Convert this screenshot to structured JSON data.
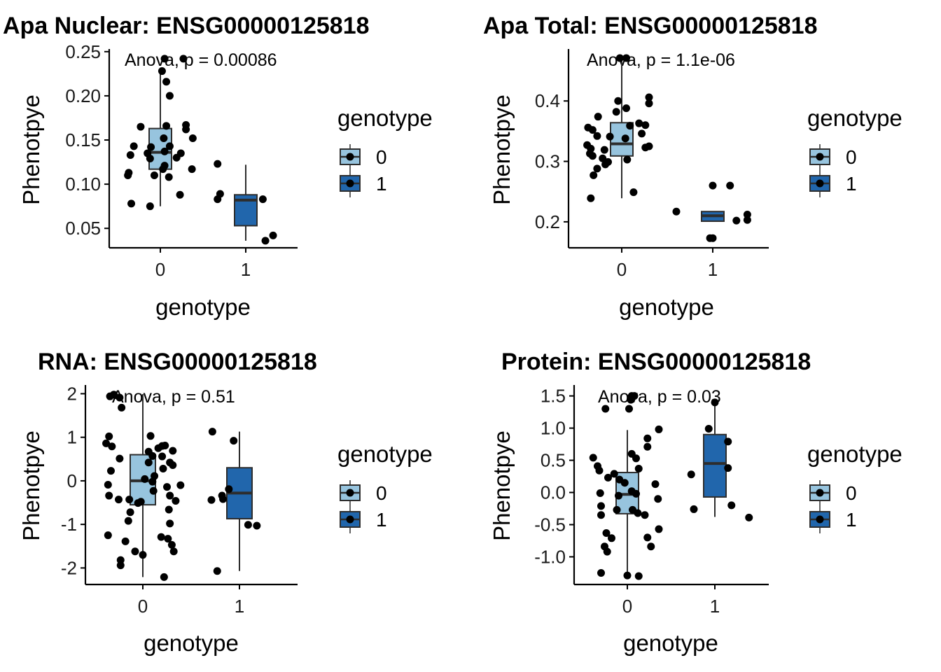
{
  "chart_data": [
    {
      "type": "boxplot",
      "title": "Apa Nuclear: ENSG00000125818",
      "xlabel": "genotype",
      "ylabel": "Phenotpye",
      "annotation": "Anova, p = 0.00086",
      "categories": [
        "0",
        "1"
      ],
      "ylim": [
        0.028,
        0.253
      ],
      "yticks": [
        0.05,
        0.1,
        0.15,
        0.2,
        0.25
      ],
      "ytick_labels": [
        "0.05",
        "0.10",
        "0.15",
        "0.20",
        "0.25"
      ],
      "legend": {
        "title": "genotype",
        "entries": [
          "0",
          "1"
        ],
        "position": "right"
      },
      "boxes": [
        {
          "group": "0",
          "whisker_low": 0.075,
          "q1": 0.117,
          "median": 0.136,
          "q3": 0.163,
          "whisker_high": 0.228
        },
        {
          "group": "1",
          "whisker_low": 0.036,
          "q1": 0.053,
          "median": 0.082,
          "q3": 0.088,
          "whisker_high": 0.122
        }
      ],
      "points": [
        {
          "x": 0.05,
          "y": 0.242
        },
        {
          "x": 0.27,
          "y": 0.242
        },
        {
          "x": 0.02,
          "y": 0.228
        },
        {
          "x": 0.07,
          "y": 0.216
        },
        {
          "x": 0.11,
          "y": 0.2
        },
        {
          "x": 0.3,
          "y": 0.167
        },
        {
          "x": 0.3,
          "y": 0.162
        },
        {
          "x": 0.07,
          "y": 0.166
        },
        {
          "x": -0.23,
          "y": 0.165
        },
        {
          "x": 0.38,
          "y": 0.152
        },
        {
          "x": 0.04,
          "y": 0.152
        },
        {
          "x": -0.31,
          "y": 0.143
        },
        {
          "x": -0.11,
          "y": 0.142
        },
        {
          "x": 0.11,
          "y": 0.143
        },
        {
          "x": 0.05,
          "y": 0.137
        },
        {
          "x": -0.15,
          "y": 0.135
        },
        {
          "x": 0.24,
          "y": 0.135
        },
        {
          "x": -0.12,
          "y": 0.129
        },
        {
          "x": -0.35,
          "y": 0.133
        },
        {
          "x": 0.19,
          "y": 0.13
        },
        {
          "x": 0.05,
          "y": 0.121
        },
        {
          "x": 0.03,
          "y": 0.117
        },
        {
          "x": 0.37,
          "y": 0.117
        },
        {
          "x": -0.37,
          "y": 0.113
        },
        {
          "x": -0.38,
          "y": 0.11
        },
        {
          "x": -0.07,
          "y": 0.11
        },
        {
          "x": 0.1,
          "y": 0.108
        },
        {
          "x": 0.23,
          "y": 0.088
        },
        {
          "x": -0.34,
          "y": 0.078
        },
        {
          "x": -0.12,
          "y": 0.075
        },
        {
          "x": 0.67,
          "y": 0.123
        },
        {
          "x": 0.7,
          "y": 0.089
        },
        {
          "x": 0.67,
          "y": 0.083
        },
        {
          "x": 1.2,
          "y": 0.083
        },
        {
          "x": 1.32,
          "y": 0.042
        },
        {
          "x": 1.23,
          "y": 0.036
        }
      ]
    },
    {
      "type": "boxplot",
      "title": "Apa Total: ENSG00000125818",
      "xlabel": "genotype",
      "ylabel": "Phenotpye",
      "annotation": "Anova, p = 1.1e-06",
      "categories": [
        "0",
        "1"
      ],
      "ylim": [
        0.157,
        0.486
      ],
      "yticks": [
        0.2,
        0.3,
        0.4
      ],
      "ytick_labels": [
        "0.2",
        "0.3",
        "0.4"
      ],
      "legend": {
        "title": "genotype",
        "entries": [
          "0",
          "1"
        ],
        "position": "right"
      },
      "boxes": [
        {
          "group": "0",
          "whisker_low": 0.239,
          "q1": 0.309,
          "median": 0.329,
          "q3": 0.364,
          "whisker_high": 0.471
        },
        {
          "group": "1",
          "whisker_low": 0.2,
          "q1": 0.201,
          "median": 0.21,
          "q3": 0.217,
          "whisker_high": 0.217
        }
      ],
      "points": [
        {
          "x": -0.02,
          "y": 0.471
        },
        {
          "x": 0.05,
          "y": 0.471
        },
        {
          "x": 0.3,
          "y": 0.406
        },
        {
          "x": -0.04,
          "y": 0.4
        },
        {
          "x": 0.3,
          "y": 0.396
        },
        {
          "x": 0.05,
          "y": 0.388
        },
        {
          "x": -0.06,
          "y": 0.382
        },
        {
          "x": -0.26,
          "y": 0.374
        },
        {
          "x": 0.19,
          "y": 0.363
        },
        {
          "x": 0.26,
          "y": 0.36
        },
        {
          "x": 0.09,
          "y": 0.359
        },
        {
          "x": -0.37,
          "y": 0.356
        },
        {
          "x": -0.32,
          "y": 0.352
        },
        {
          "x": 0.22,
          "y": 0.346
        },
        {
          "x": -0.27,
          "y": 0.342
        },
        {
          "x": -0.13,
          "y": 0.341
        },
        {
          "x": 0.04,
          "y": 0.338
        },
        {
          "x": -0.38,
          "y": 0.327
        },
        {
          "x": 0.26,
          "y": 0.323
        },
        {
          "x": 0.3,
          "y": 0.325
        },
        {
          "x": -0.34,
          "y": 0.321
        },
        {
          "x": -0.19,
          "y": 0.319
        },
        {
          "x": -0.35,
          "y": 0.313
        },
        {
          "x": -0.32,
          "y": 0.309
        },
        {
          "x": -0.21,
          "y": 0.305
        },
        {
          "x": 0.06,
          "y": 0.303
        },
        {
          "x": -0.15,
          "y": 0.299
        },
        {
          "x": -0.18,
          "y": 0.295
        },
        {
          "x": -0.27,
          "y": 0.288
        },
        {
          "x": -0.31,
          "y": 0.277
        },
        {
          "x": 0.13,
          "y": 0.249
        },
        {
          "x": -0.34,
          "y": 0.239
        },
        {
          "x": 1.0,
          "y": 0.26
        },
        {
          "x": 1.19,
          "y": 0.26
        },
        {
          "x": 0.6,
          "y": 0.217
        },
        {
          "x": 1.38,
          "y": 0.212
        },
        {
          "x": 1.26,
          "y": 0.202
        },
        {
          "x": 1.38,
          "y": 0.203
        },
        {
          "x": 0.97,
          "y": 0.173
        },
        {
          "x": 1.0,
          "y": 0.173
        }
      ]
    },
    {
      "type": "boxplot",
      "title": "RNA: ENSG00000125818",
      "xlabel": "genotype",
      "ylabel": "Phenotpye",
      "annotation": "Anova, p = 0.51",
      "categories": [
        "0",
        "1"
      ],
      "ylim": [
        -2.38,
        2.2
      ],
      "yticks": [
        -2,
        -1,
        0,
        1,
        2
      ],
      "ytick_labels": [
        "-2",
        "-1",
        "0",
        "1",
        "2"
      ],
      "legend": {
        "title": "genotype",
        "entries": [
          "0",
          "1"
        ],
        "position": "right"
      },
      "boxes": [
        {
          "group": "0",
          "whisker_low": -2.21,
          "q1": -0.55,
          "median": 0.0,
          "q3": 0.6,
          "whisker_high": 1.99
        },
        {
          "group": "1",
          "whisker_low": -2.07,
          "q1": -0.87,
          "median": -0.28,
          "q3": 0.3,
          "whisker_high": 1.13
        }
      ],
      "points": [
        {
          "x": -0.34,
          "y": 1.94
        },
        {
          "x": -0.3,
          "y": 1.98
        },
        {
          "x": -0.24,
          "y": 1.91
        },
        {
          "x": -0.22,
          "y": 1.68
        },
        {
          "x": -0.35,
          "y": 1.02
        },
        {
          "x": -0.38,
          "y": 0.86
        },
        {
          "x": -0.32,
          "y": 0.79
        },
        {
          "x": 0.08,
          "y": 1.03
        },
        {
          "x": 0.2,
          "y": 0.8
        },
        {
          "x": 0.23,
          "y": 0.81
        },
        {
          "x": 0.31,
          "y": 0.69
        },
        {
          "x": 0.16,
          "y": 0.75
        },
        {
          "x": 0.06,
          "y": 0.67
        },
        {
          "x": 0.1,
          "y": 0.57
        },
        {
          "x": -0.24,
          "y": 0.51
        },
        {
          "x": -0.33,
          "y": 0.23
        },
        {
          "x": 0.2,
          "y": 0.56
        },
        {
          "x": 0.28,
          "y": 0.42
        },
        {
          "x": 0.31,
          "y": 0.36
        },
        {
          "x": 0.21,
          "y": 0.28
        },
        {
          "x": 0.06,
          "y": 0.42
        },
        {
          "x": 0.12,
          "y": 0.11
        },
        {
          "x": -0.36,
          "y": -0.09
        },
        {
          "x": 0.02,
          "y": 0.04
        },
        {
          "x": 0.1,
          "y": -0.02
        },
        {
          "x": 0.39,
          "y": -0.1
        },
        {
          "x": 0.25,
          "y": -0.14
        },
        {
          "x": 0.11,
          "y": -0.23
        },
        {
          "x": -0.35,
          "y": -0.34
        },
        {
          "x": -0.25,
          "y": -0.43
        },
        {
          "x": -0.14,
          "y": -0.43
        },
        {
          "x": 0.28,
          "y": -0.34
        },
        {
          "x": 0.34,
          "y": -0.46
        },
        {
          "x": -0.05,
          "y": -0.51
        },
        {
          "x": -0.02,
          "y": -0.48
        },
        {
          "x": -0.13,
          "y": -0.72
        },
        {
          "x": -0.15,
          "y": -0.92
        },
        {
          "x": 0.27,
          "y": -0.66
        },
        {
          "x": 0.28,
          "y": -0.98
        },
        {
          "x": -0.36,
          "y": -1.25
        },
        {
          "x": 0.19,
          "y": -1.29
        },
        {
          "x": 0.26,
          "y": -1.33
        },
        {
          "x": -0.18,
          "y": -1.39
        },
        {
          "x": 0.3,
          "y": -1.47
        },
        {
          "x": 0.32,
          "y": -1.62
        },
        {
          "x": -0.08,
          "y": -1.62
        },
        {
          "x": 0.0,
          "y": -1.7
        },
        {
          "x": -0.23,
          "y": -1.82
        },
        {
          "x": -0.23,
          "y": -1.94
        },
        {
          "x": 0.22,
          "y": -2.21
        },
        {
          "x": 0.72,
          "y": 1.13
        },
        {
          "x": 0.94,
          "y": 0.92
        },
        {
          "x": 0.89,
          "y": -0.19
        },
        {
          "x": 0.82,
          "y": -0.34
        },
        {
          "x": 0.71,
          "y": -0.44
        },
        {
          "x": 0.83,
          "y": -0.42
        },
        {
          "x": 1.09,
          "y": -1.01
        },
        {
          "x": 1.18,
          "y": -1.03
        },
        {
          "x": 0.77,
          "y": -2.07
        }
      ]
    },
    {
      "type": "boxplot",
      "title": "Protein: ENSG00000125818",
      "xlabel": "genotype",
      "ylabel": "Phenotpye",
      "annotation": "Anova, p = 0.03",
      "categories": [
        "0",
        "1"
      ],
      "ylim": [
        -1.43,
        1.67
      ],
      "yticks": [
        -1.0,
        -0.5,
        0.0,
        0.5,
        1.0,
        1.5
      ],
      "ytick_labels": [
        "-1.0",
        "-0.5",
        "0.0",
        "0.5",
        "1.0",
        "1.5"
      ],
      "legend": {
        "title": "genotype",
        "entries": [
          "0",
          "1"
        ],
        "position": "right"
      },
      "boxes": [
        {
          "group": "0",
          "whisker_low": -1.3,
          "q1": -0.33,
          "median": -0.03,
          "q3": 0.31,
          "whisker_high": 0.97
        },
        {
          "group": "1",
          "whisker_low": -0.38,
          "q1": -0.07,
          "median": 0.45,
          "q3": 0.9,
          "whisker_high": 1.39
        }
      ],
      "points": [
        {
          "x": 0.05,
          "y": 1.5
        },
        {
          "x": 0.08,
          "y": 1.5
        },
        {
          "x": 0.04,
          "y": 1.44
        },
        {
          "x": -0.25,
          "y": 1.3
        },
        {
          "x": 0.02,
          "y": 1.3
        },
        {
          "x": 0.36,
          "y": 0.98
        },
        {
          "x": 0.23,
          "y": 0.84
        },
        {
          "x": 0.23,
          "y": 0.71
        },
        {
          "x": 0.05,
          "y": 0.6
        },
        {
          "x": 0.1,
          "y": 0.53
        },
        {
          "x": -0.39,
          "y": 0.54
        },
        {
          "x": -0.34,
          "y": 0.41
        },
        {
          "x": -0.32,
          "y": 0.34
        },
        {
          "x": 0.13,
          "y": 0.37
        },
        {
          "x": -0.15,
          "y": 0.29
        },
        {
          "x": -0.22,
          "y": 0.23
        },
        {
          "x": -0.09,
          "y": 0.2
        },
        {
          "x": -0.03,
          "y": 0.15
        },
        {
          "x": 0.32,
          "y": 0.13
        },
        {
          "x": 0.05,
          "y": 0.02
        },
        {
          "x": -0.31,
          "y": -0.01
        },
        {
          "x": -0.1,
          "y": -0.05
        },
        {
          "x": 0.1,
          "y": -0.02
        },
        {
          "x": 0.35,
          "y": -0.1
        },
        {
          "x": 0.06,
          "y": -0.27
        },
        {
          "x": -0.3,
          "y": -0.21
        },
        {
          "x": 0.12,
          "y": -0.32
        },
        {
          "x": -0.12,
          "y": -0.27
        },
        {
          "x": -0.3,
          "y": -0.35
        },
        {
          "x": 0.2,
          "y": -0.35
        },
        {
          "x": -0.24,
          "y": -0.63
        },
        {
          "x": -0.18,
          "y": -0.71
        },
        {
          "x": -0.26,
          "y": -0.84
        },
        {
          "x": 0.27,
          "y": -0.84
        },
        {
          "x": -0.23,
          "y": -0.92
        },
        {
          "x": -0.3,
          "y": -1.25
        },
        {
          "x": 0.0,
          "y": -1.29
        },
        {
          "x": 0.13,
          "y": -1.3
        },
        {
          "x": 0.23,
          "y": -0.7
        },
        {
          "x": 0.36,
          "y": -0.57
        },
        {
          "x": 1.0,
          "y": 1.4
        },
        {
          "x": 0.93,
          "y": 0.99
        },
        {
          "x": 1.15,
          "y": 0.79
        },
        {
          "x": 1.15,
          "y": 0.38
        },
        {
          "x": 0.73,
          "y": 0.28
        },
        {
          "x": 1.19,
          "y": -0.2
        },
        {
          "x": 0.76,
          "y": -0.26
        },
        {
          "x": 1.39,
          "y": -0.39
        }
      ]
    }
  ],
  "colors": {
    "genotype_0_fill": "#97C4DE",
    "genotype_1_fill": "#2166AC",
    "point": "#000000",
    "box_outline": "#2d2d2d",
    "axis": "#000000"
  }
}
